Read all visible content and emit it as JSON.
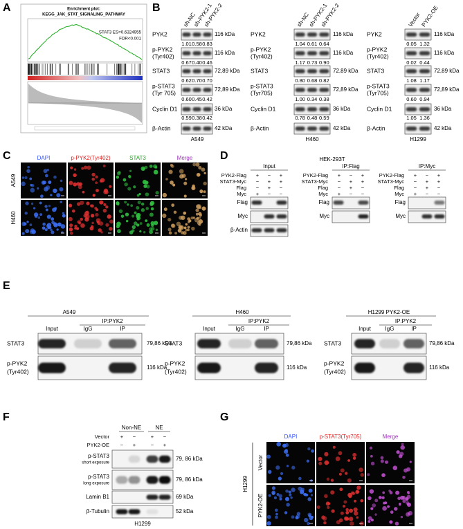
{
  "panel_a": {
    "letter": "A",
    "title": "Enrichment plot:",
    "pathway": "KEGG_JAK_STAT_SIGNALING_PATHWAY",
    "es": "STAT3 ES=0.6324955",
    "fdr": "FDR<0.001"
  },
  "panel_b": {
    "letter": "B",
    "sets": [
      {
        "cell": "A549",
        "lanes": [
          "sh-NC",
          "sh-PYK2-1",
          "sh-PYK2-2"
        ],
        "rows": [
          {
            "label": [
              "PYK2"
            ],
            "kda": "116 kDa",
            "values": [
              "1.01",
              "0.58",
              "0.83"
            ]
          },
          {
            "label": [
              "p-PYK2",
              "(Tyr402)"
            ],
            "kda": "116 kDa",
            "values": [
              "0.67",
              "0.40",
              "0.46"
            ]
          },
          {
            "label": [
              "STAT3"
            ],
            "kda": "72,89 kDa",
            "values": [
              "0.62",
              "0.70",
              "0.70"
            ]
          },
          {
            "label": [
              "p-STAT3",
              "(Tyr 705)"
            ],
            "kda": "72,89 kDa",
            "values": [
              "0.60",
              "0.45",
              "0.42"
            ]
          },
          {
            "label": [
              "Cyclin D1"
            ],
            "kda": "36 kDa",
            "values": [
              "0.59",
              "0.38",
              "0.42"
            ]
          },
          {
            "label": [
              "β-Actin"
            ],
            "kda": "42 kDa"
          }
        ]
      },
      {
        "cell": "H460",
        "lanes": [
          "sh-NC",
          "sh-PYK2-1",
          "sh-PYK2-2"
        ],
        "rows": [
          {
            "label": [
              "PYK2"
            ],
            "kda": "116 kDa",
            "values": [
              "1.04",
              "0.61",
              "0.64"
            ]
          },
          {
            "label": [
              "p-PYK2",
              "(Tyr402)"
            ],
            "kda": "116 kDa",
            "values": [
              "1.17",
              "0.73",
              "0.90"
            ]
          },
          {
            "label": [
              "STAT3"
            ],
            "kda": "72,89 kDa",
            "values": [
              "0.80",
              "0.68",
              "0.82"
            ]
          },
          {
            "label": [
              "p-STAT3",
              "(Tyr705)"
            ],
            "kda": "72,89 kDa",
            "values": [
              "1.00",
              "0.34",
              "0.38"
            ]
          },
          {
            "label": [
              "Cyclin D1"
            ],
            "kda": "36 kDa",
            "values": [
              "0.78",
              "0.48",
              "0.59"
            ]
          },
          {
            "label": [
              "β-Actin"
            ],
            "kda": "42 kDa"
          }
        ]
      },
      {
        "cell": "H1299",
        "lanes": [
          "Vector",
          "PYK2-OE"
        ],
        "rows": [
          {
            "label": [
              "PYK2"
            ],
            "kda": "116 kDa",
            "values": [
              "0.05",
              "1.32"
            ]
          },
          {
            "label": [
              "p-PYK2",
              "(Tyr402)"
            ],
            "kda": "116 kDa",
            "values": [
              "0.02",
              "0.44"
            ]
          },
          {
            "label": [
              "STAT3"
            ],
            "kda": "72,89 kDa",
            "values": [
              "1.08",
              "1.17"
            ]
          },
          {
            "label": [
              "p-STAT3",
              "(Tyr705)"
            ],
            "kda": "72,89 kDa",
            "values": [
              "0.60",
              "0.94"
            ]
          },
          {
            "label": [
              "Cyclin D1"
            ],
            "kda": "36 kDa",
            "values": [
              "1.05",
              "1.36"
            ]
          },
          {
            "label": [
              "β-Actin"
            ],
            "kda": "42 kDa"
          }
        ]
      }
    ]
  },
  "panel_c": {
    "letter": "C",
    "columns": [
      "DAPI",
      "p-PYK2(Tyr402)",
      "STAT3",
      "Merge"
    ],
    "rows": [
      "A549",
      "H460"
    ]
  },
  "panel_d": {
    "letter": "D",
    "title": "HEK-293T",
    "sections": [
      {
        "title": "Input",
        "rows": [
          {
            "label": "PYK2-Flag",
            "signs": [
              "+",
              "−",
              "+"
            ]
          },
          {
            "label": "STAT3-Myc",
            "signs": [
              "−",
              "+",
              "+"
            ]
          },
          {
            "label": "Flag",
            "signs": [
              "−",
              "+",
              "−"
            ]
          },
          {
            "label": "Myc",
            "signs": [
              "+",
              "−",
              "−"
            ]
          }
        ],
        "blots": [
          "Flag",
          "Myc",
          "β-Actin"
        ]
      },
      {
        "title": "IP:Flag",
        "rows": [
          {
            "label": "PYK2-Flag",
            "signs": [
              "+",
              "−",
              "+"
            ]
          },
          {
            "label": "STAT3-Myc",
            "signs": [
              "−",
              "+",
              "+"
            ]
          },
          {
            "label": "Flag",
            "signs": [
              "−",
              "+",
              "−"
            ]
          },
          {
            "label": "Myc",
            "signs": [
              "+",
              "−",
              "−"
            ]
          }
        ],
        "blots": [
          "Flag",
          "Myc"
        ]
      },
      {
        "title": "IP:Myc",
        "rows": [
          {
            "label": "PYK2-Flag",
            "signs": [
              "+",
              "−",
              "+"
            ]
          },
          {
            "label": "STAT3-Myc",
            "signs": [
              "−",
              "+",
              "+"
            ]
          },
          {
            "label": "Flag",
            "signs": [
              "−",
              "+",
              "−"
            ]
          },
          {
            "label": "Myc",
            "signs": [
              "+",
              "−",
              "−"
            ]
          }
        ],
        "blots": [
          "Flag",
          "Myc"
        ]
      }
    ]
  },
  "panel_e": {
    "letter": "E",
    "sets": [
      {
        "cell": "A549",
        "ip": "IP:PYK2",
        "lanes": [
          "Input",
          "IgG",
          "IP"
        ],
        "rows": [
          {
            "label": [
              "STAT3"
            ],
            "kda": "79,86 kDa"
          },
          {
            "label": [
              "p-PYK2",
              "(Tyr402)"
            ],
            "kda": "116 kDa"
          }
        ]
      },
      {
        "cell": "H460",
        "ip": "IP:PYK2",
        "lanes": [
          "Input",
          "IgG",
          "IP"
        ],
        "rows": [
          {
            "label": [
              "STAT3"
            ],
            "kda": "79,86 kDa"
          },
          {
            "label": [
              "p-PYK2",
              "(Tyr402)"
            ],
            "kda": "116 kDa"
          }
        ]
      },
      {
        "cell": "H1299 PYK2-OE",
        "ip": "IP:PYK2",
        "lanes": [
          "Input",
          "IgG",
          "IP"
        ],
        "rows": [
          {
            "label": [
              "STAT3"
            ],
            "kda": "79,86 kDa"
          },
          {
            "label": [
              "p-PYK2",
              "(Tyr402)"
            ],
            "kda": "116 kDa"
          }
        ]
      }
    ]
  },
  "panel_f": {
    "letter": "F",
    "groups": [
      "Non-NE",
      "NE"
    ],
    "conditions": [
      {
        "label": "Vector",
        "signs": [
          "+",
          "−",
          "+",
          "−"
        ]
      },
      {
        "label": "PYK2-OE",
        "signs": [
          "−",
          "+",
          "−",
          "+"
        ]
      }
    ],
    "rows": [
      {
        "label": [
          "p-STAT3",
          "short exposure"
        ],
        "kda": "79, 86 kDa"
      },
      {
        "label": [
          "p-STAT3",
          "long exposure"
        ],
        "kda": "79, 86 kDa"
      },
      {
        "label": [
          "Lamin B1"
        ],
        "kda": "69 kDa"
      },
      {
        "label": [
          "β-Tubulin"
        ],
        "kda": "52 kDa"
      }
    ],
    "cell": "H1299"
  },
  "panel_g": {
    "letter": "G",
    "columns": [
      "DAPI",
      "p-STAT3(Tyr705)",
      "Merge"
    ],
    "rows": [
      "Vector",
      "PYK2-OE"
    ],
    "cell": "H1299"
  }
}
